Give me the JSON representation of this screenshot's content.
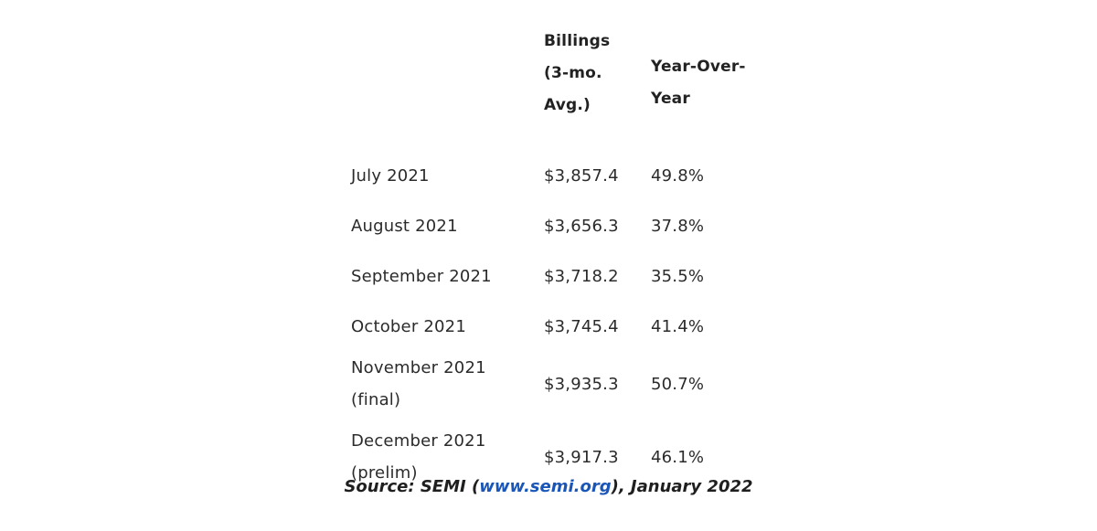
{
  "table": {
    "headers": {
      "month": "",
      "billings": "Billings (3-mo. Avg.)",
      "yoy": "Year-Over-Year"
    },
    "rows": [
      {
        "month": "July 2021",
        "billings": "$3,857.4",
        "yoy": "49.8%"
      },
      {
        "month": "August 2021",
        "billings": "$3,656.3",
        "yoy": "37.8%"
      },
      {
        "month": "September 2021",
        "billings": "$3,718.2",
        "yoy": "35.5%"
      },
      {
        "month": "October 2021",
        "billings": "$3,745.4",
        "yoy": "41.4%"
      },
      {
        "month": "November 2021 (final)",
        "billings": "$3,935.3",
        "yoy": "50.7%"
      },
      {
        "month": "December 2021 (prelim)",
        "billings": "$3,917.3",
        "yoy": "46.1%"
      }
    ]
  },
  "source": {
    "prefix": "Source: SEMI (",
    "link": "www.semi.org",
    "suffix": "), January 2022"
  },
  "colors": {
    "link": "#1a56b8",
    "text": "#2b2b2b"
  }
}
